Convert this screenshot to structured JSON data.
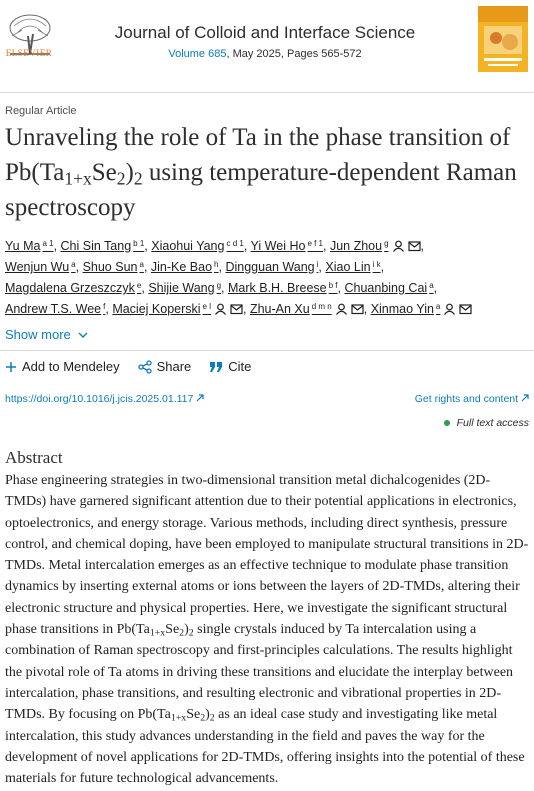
{
  "header": {
    "publisher": "ELSEVIER",
    "journal": "Journal of Colloid and Interface Science",
    "volume": "Volume 685",
    "issue_info": ", May 2025, Pages 565-572"
  },
  "article_type": "Regular Article",
  "title": [
    {
      "text": "Unraveling the role of Ta in the phase transition of Pb(Ta",
      "sub": false
    },
    {
      "text": "1+x",
      "sub": true
    },
    {
      "text": "Se",
      "sub": false
    },
    {
      "text": "2",
      "sub": true
    },
    {
      "text": ")",
      "sub": false
    },
    {
      "text": "2",
      "sub": true
    },
    {
      "text": " using temperature-dependent Raman spectroscopy",
      "sub": false
    }
  ],
  "authors": [
    {
      "name": "Yu Ma",
      "sup": "a 1"
    },
    {
      "name": "Chi Sin Tang",
      "sup": "b 1"
    },
    {
      "name": "Xiaohui Yang",
      "sup": "c d 1"
    },
    {
      "name": "Yi Wei Ho",
      "sup": "e f 1"
    },
    {
      "name": "Jun Zhou",
      "sup": "g",
      "person": true,
      "email": true
    },
    {
      "name": "Wenjun Wu",
      "sup": "a"
    },
    {
      "name": "Shuo Sun",
      "sup": "a"
    },
    {
      "name": "Jin-Ke Bao",
      "sup": "h"
    },
    {
      "name": "Dingguan Wang",
      "sup": "i"
    },
    {
      "name": "Xiao Lin",
      "sup": "i k"
    },
    {
      "name": "Magdalena Grzeszczyk",
      "sup": "e"
    },
    {
      "name": "Shijie Wang",
      "sup": "g"
    },
    {
      "name": "Mark B.H. Breese",
      "sup": "b f"
    },
    {
      "name": "Chuanbing Cai",
      "sup": "a"
    },
    {
      "name": "Andrew T.S. Wee",
      "sup": "f"
    },
    {
      "name": "Maciej Koperski",
      "sup": "e l",
      "person": true,
      "email": true
    },
    {
      "name": "Zhu-An Xu",
      "sup": "d m n",
      "person": true,
      "email": true
    },
    {
      "name": "Xinmao Yin",
      "sup": "a",
      "person": true,
      "email": true
    }
  ],
  "show_more": "Show more",
  "actions": {
    "mendeley": "Add to Mendeley",
    "share": "Share",
    "cite": "Cite"
  },
  "doi": "https://doi.org/10.1016/j.jcis.2025.01.117",
  "rights": "Get rights and content",
  "access": "Full text access",
  "abstract": {
    "heading": "Abstract",
    "segments": [
      {
        "text": "Phase engineering strategies in two-dimensional transition metal dichalcogenides (2D-TMDs) have garnered significant attention due to their potential applications in electronics, optoelectronics, and energy storage. Various methods, including direct synthesis, pressure control, and chemical doping, have been employed to manipulate structural transitions in 2D-TMDs. Metal intercalation emerges as an effective technique to modulate phase transition dynamics by inserting external atoms or ions between the layers of 2D-TMDs, altering their electronic structure and physical properties. Here, we investigate the significant structural phase transitions in Pb(Ta",
        "sub": false
      },
      {
        "text": "1+x",
        "sub": true
      },
      {
        "text": "Se",
        "sub": false
      },
      {
        "text": "2",
        "sub": true
      },
      {
        "text": ")",
        "sub": false
      },
      {
        "text": "2",
        "sub": true
      },
      {
        "text": " single crystals induced by Ta intercalation using a combination of Raman spectroscopy and first-principles calculations. The results highlight the pivotal role of Ta atoms in driving these transitions and elucidate the interplay between intercalation, phase transitions, and resulting electronic and vibrational properties in 2D-TMDs. By focusing on Pb(Ta",
        "sub": false
      },
      {
        "text": "1+x",
        "sub": true
      },
      {
        "text": "Se",
        "sub": false
      },
      {
        "text": "2",
        "sub": true
      },
      {
        "text": ")",
        "sub": false
      },
      {
        "text": "2",
        "sub": true
      },
      {
        "text": " as an ideal case study and investigating like metal intercalation, this study advances understanding in the field and paves the way for the development of novel applications for 2D-TMDs, offering insights into the potential of these materials for future technological advancements.",
        "sub": false
      }
    ]
  }
}
